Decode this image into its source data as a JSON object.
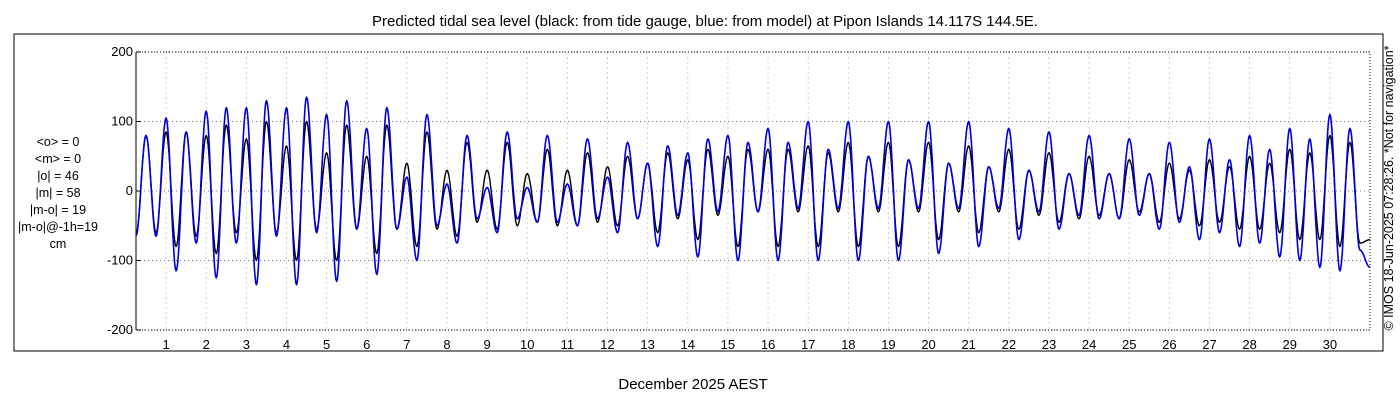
{
  "chart_data": {
    "type": "line",
    "title": "Predicted tidal sea level (black: from tide gauge, blue: from model) at Pipon Islands 14.117S 144.5E.",
    "xlabel": "December 2025 AEST",
    "ylabel": "",
    "xlim": [
      0.25,
      31.0
    ],
    "ylim": [
      -200,
      200
    ],
    "y_ticks": [
      200,
      100,
      0,
      -100,
      -200
    ],
    "x_ticks": [
      1,
      2,
      3,
      4,
      5,
      6,
      7,
      8,
      9,
      10,
      11,
      12,
      13,
      14,
      15,
      16,
      17,
      18,
      19,
      20,
      21,
      22,
      23,
      24,
      25,
      26,
      27,
      28,
      29,
      30
    ],
    "grid": true,
    "series": [
      {
        "name": "tide gauge",
        "color": "#000000",
        "peaks": [
          [
            0.5,
            80
          ],
          [
            0.75,
            -60
          ],
          [
            1.0,
            85
          ],
          [
            1.25,
            -80
          ],
          [
            1.5,
            85
          ],
          [
            1.75,
            -65
          ],
          [
            2.0,
            80
          ],
          [
            2.25,
            -90
          ],
          [
            2.5,
            95
          ],
          [
            2.75,
            -60
          ],
          [
            3.0,
            75
          ],
          [
            3.25,
            -100
          ],
          [
            3.5,
            100
          ],
          [
            3.75,
            -60
          ],
          [
            4.0,
            65
          ],
          [
            4.25,
            -100
          ],
          [
            4.5,
            100
          ],
          [
            4.75,
            -55
          ],
          [
            5.0,
            55
          ],
          [
            5.25,
            -100
          ],
          [
            5.5,
            95
          ],
          [
            5.75,
            -55
          ],
          [
            6.0,
            50
          ],
          [
            6.25,
            -90
          ],
          [
            6.5,
            95
          ],
          [
            6.75,
            -55
          ],
          [
            7.0,
            40
          ],
          [
            7.25,
            -80
          ],
          [
            7.5,
            85
          ],
          [
            7.75,
            -55
          ],
          [
            8.0,
            30
          ],
          [
            8.25,
            -65
          ],
          [
            8.5,
            70
          ],
          [
            8.75,
            -45
          ],
          [
            9.0,
            30
          ],
          [
            9.25,
            -55
          ],
          [
            9.5,
            70
          ],
          [
            9.75,
            -50
          ],
          [
            10.0,
            25
          ],
          [
            10.25,
            -45
          ],
          [
            10.5,
            60
          ],
          [
            10.75,
            -50
          ],
          [
            11.0,
            30
          ],
          [
            11.25,
            -50
          ],
          [
            11.5,
            55
          ],
          [
            11.75,
            -45
          ],
          [
            12.0,
            35
          ],
          [
            12.25,
            -50
          ],
          [
            12.5,
            50
          ],
          [
            12.75,
            -40
          ],
          [
            13.0,
            40
          ],
          [
            13.25,
            -60
          ],
          [
            13.5,
            55
          ],
          [
            13.75,
            -40
          ],
          [
            14.0,
            45
          ],
          [
            14.25,
            -70
          ],
          [
            14.5,
            60
          ],
          [
            14.75,
            -35
          ],
          [
            15.0,
            50
          ],
          [
            15.25,
            -80
          ],
          [
            15.5,
            60
          ],
          [
            15.75,
            -30
          ],
          [
            16.0,
            60
          ],
          [
            16.25,
            -80
          ],
          [
            16.5,
            60
          ],
          [
            16.75,
            -30
          ],
          [
            17.0,
            65
          ],
          [
            17.25,
            -80
          ],
          [
            17.5,
            55
          ],
          [
            17.75,
            -30
          ],
          [
            18.0,
            70
          ],
          [
            18.25,
            -80
          ],
          [
            18.5,
            50
          ],
          [
            18.75,
            -30
          ],
          [
            19.0,
            70
          ],
          [
            19.25,
            -80
          ],
          [
            19.5,
            45
          ],
          [
            19.75,
            -30
          ],
          [
            20.0,
            70
          ],
          [
            20.25,
            -70
          ],
          [
            20.5,
            40
          ],
          [
            20.75,
            -30
          ],
          [
            21.0,
            65
          ],
          [
            21.25,
            -60
          ],
          [
            21.5,
            35
          ],
          [
            21.75,
            -30
          ],
          [
            22.0,
            60
          ],
          [
            22.25,
            -55
          ],
          [
            22.5,
            30
          ],
          [
            22.75,
            -35
          ],
          [
            23.0,
            55
          ],
          [
            23.25,
            -45
          ],
          [
            23.5,
            25
          ],
          [
            23.75,
            -40
          ],
          [
            24.0,
            50
          ],
          [
            24.25,
            -35
          ],
          [
            24.5,
            25
          ],
          [
            24.75,
            -40
          ],
          [
            25.0,
            45
          ],
          [
            25.25,
            -30
          ],
          [
            25.5,
            25
          ],
          [
            25.75,
            -45
          ],
          [
            26.0,
            40
          ],
          [
            26.25,
            -40
          ],
          [
            26.5,
            30
          ],
          [
            26.75,
            -50
          ],
          [
            27.0,
            45
          ],
          [
            27.25,
            -45
          ],
          [
            27.5,
            35
          ],
          [
            27.75,
            -55
          ],
          [
            28.0,
            50
          ],
          [
            28.25,
            -55
          ],
          [
            28.5,
            40
          ],
          [
            28.75,
            -60
          ],
          [
            29.0,
            60
          ],
          [
            29.25,
            -70
          ],
          [
            29.5,
            55
          ],
          [
            29.75,
            -70
          ],
          [
            30.0,
            80
          ],
          [
            30.25,
            -80
          ],
          [
            30.5,
            70
          ],
          [
            30.75,
            -75
          ],
          [
            31.0,
            -70
          ]
        ]
      },
      {
        "name": "model",
        "color": "#0000dd",
        "peaks": [
          [
            0.5,
            80
          ],
          [
            0.75,
            -65
          ],
          [
            1.0,
            105
          ],
          [
            1.25,
            -115
          ],
          [
            1.5,
            85
          ],
          [
            1.75,
            -75
          ],
          [
            2.0,
            115
          ],
          [
            2.25,
            -125
          ],
          [
            2.5,
            120
          ],
          [
            2.75,
            -75
          ],
          [
            3.0,
            120
          ],
          [
            3.25,
            -135
          ],
          [
            3.5,
            130
          ],
          [
            3.75,
            -65
          ],
          [
            4.0,
            120
          ],
          [
            4.25,
            -135
          ],
          [
            4.5,
            135
          ],
          [
            4.75,
            -60
          ],
          [
            5.0,
            110
          ],
          [
            5.25,
            -130
          ],
          [
            5.5,
            130
          ],
          [
            5.75,
            -55
          ],
          [
            6.0,
            90
          ],
          [
            6.25,
            -120
          ],
          [
            6.5,
            120
          ],
          [
            6.75,
            -55
          ],
          [
            7.0,
            20
          ],
          [
            7.25,
            -100
          ],
          [
            7.5,
            110
          ],
          [
            7.75,
            -50
          ],
          [
            8.0,
            10
          ],
          [
            8.25,
            -75
          ],
          [
            8.5,
            80
          ],
          [
            8.75,
            -40
          ],
          [
            9.0,
            5
          ],
          [
            9.25,
            -60
          ],
          [
            9.5,
            85
          ],
          [
            9.75,
            -40
          ],
          [
            10.0,
            5
          ],
          [
            10.25,
            -45
          ],
          [
            10.5,
            80
          ],
          [
            10.75,
            -45
          ],
          [
            11.0,
            10
          ],
          [
            11.25,
            -50
          ],
          [
            11.5,
            75
          ],
          [
            11.75,
            -40
          ],
          [
            12.0,
            20
          ],
          [
            12.25,
            -60
          ],
          [
            12.5,
            70
          ],
          [
            12.75,
            -40
          ],
          [
            13.0,
            40
          ],
          [
            13.25,
            -80
          ],
          [
            13.5,
            65
          ],
          [
            13.75,
            -35
          ],
          [
            14.0,
            55
          ],
          [
            14.25,
            -95
          ],
          [
            14.5,
            75
          ],
          [
            14.75,
            -30
          ],
          [
            15.0,
            80
          ],
          [
            15.25,
            -100
          ],
          [
            15.5,
            70
          ],
          [
            15.75,
            -30
          ],
          [
            16.0,
            90
          ],
          [
            16.25,
            -100
          ],
          [
            16.5,
            70
          ],
          [
            16.75,
            -25
          ],
          [
            17.0,
            100
          ],
          [
            17.25,
            -100
          ],
          [
            17.5,
            60
          ],
          [
            17.75,
            -25
          ],
          [
            18.0,
            100
          ],
          [
            18.25,
            -100
          ],
          [
            18.5,
            50
          ],
          [
            18.75,
            -25
          ],
          [
            19.0,
            100
          ],
          [
            19.25,
            -100
          ],
          [
            19.5,
            45
          ],
          [
            19.75,
            -25
          ],
          [
            20.0,
            100
          ],
          [
            20.25,
            -90
          ],
          [
            20.5,
            40
          ],
          [
            20.75,
            -25
          ],
          [
            21.0,
            100
          ],
          [
            21.25,
            -80
          ],
          [
            21.5,
            35
          ],
          [
            21.75,
            -25
          ],
          [
            22.0,
            90
          ],
          [
            22.25,
            -70
          ],
          [
            22.5,
            30
          ],
          [
            22.75,
            -30
          ],
          [
            23.0,
            85
          ],
          [
            23.25,
            -55
          ],
          [
            23.5,
            25
          ],
          [
            23.75,
            -35
          ],
          [
            24.0,
            80
          ],
          [
            24.25,
            -40
          ],
          [
            24.5,
            25
          ],
          [
            24.75,
            -40
          ],
          [
            25.0,
            75
          ],
          [
            25.25,
            -35
          ],
          [
            25.5,
            25
          ],
          [
            25.75,
            -55
          ],
          [
            26.0,
            70
          ],
          [
            26.25,
            -45
          ],
          [
            26.5,
            35
          ],
          [
            26.75,
            -70
          ],
          [
            27.0,
            75
          ],
          [
            27.25,
            -60
          ],
          [
            27.5,
            45
          ],
          [
            27.75,
            -80
          ],
          [
            28.0,
            80
          ],
          [
            28.25,
            -75
          ],
          [
            28.5,
            60
          ],
          [
            28.75,
            -95
          ],
          [
            29.0,
            90
          ],
          [
            29.25,
            -100
          ],
          [
            29.5,
            75
          ],
          [
            29.75,
            -110
          ],
          [
            30.0,
            110
          ],
          [
            30.25,
            -115
          ],
          [
            30.5,
            90
          ],
          [
            30.75,
            -85
          ],
          [
            31.0,
            -110
          ]
        ]
      }
    ]
  },
  "stats": {
    "lines": [
      "<o> = 0",
      "<m> = 0",
      "|o| = 46",
      "|m| = 58",
      "|m-o| = 19",
      "|m-o|@-1h=19",
      "cm"
    ]
  },
  "credit": "© IMOS 18-Jun-2025 07:28:26. *Not for navigation*"
}
